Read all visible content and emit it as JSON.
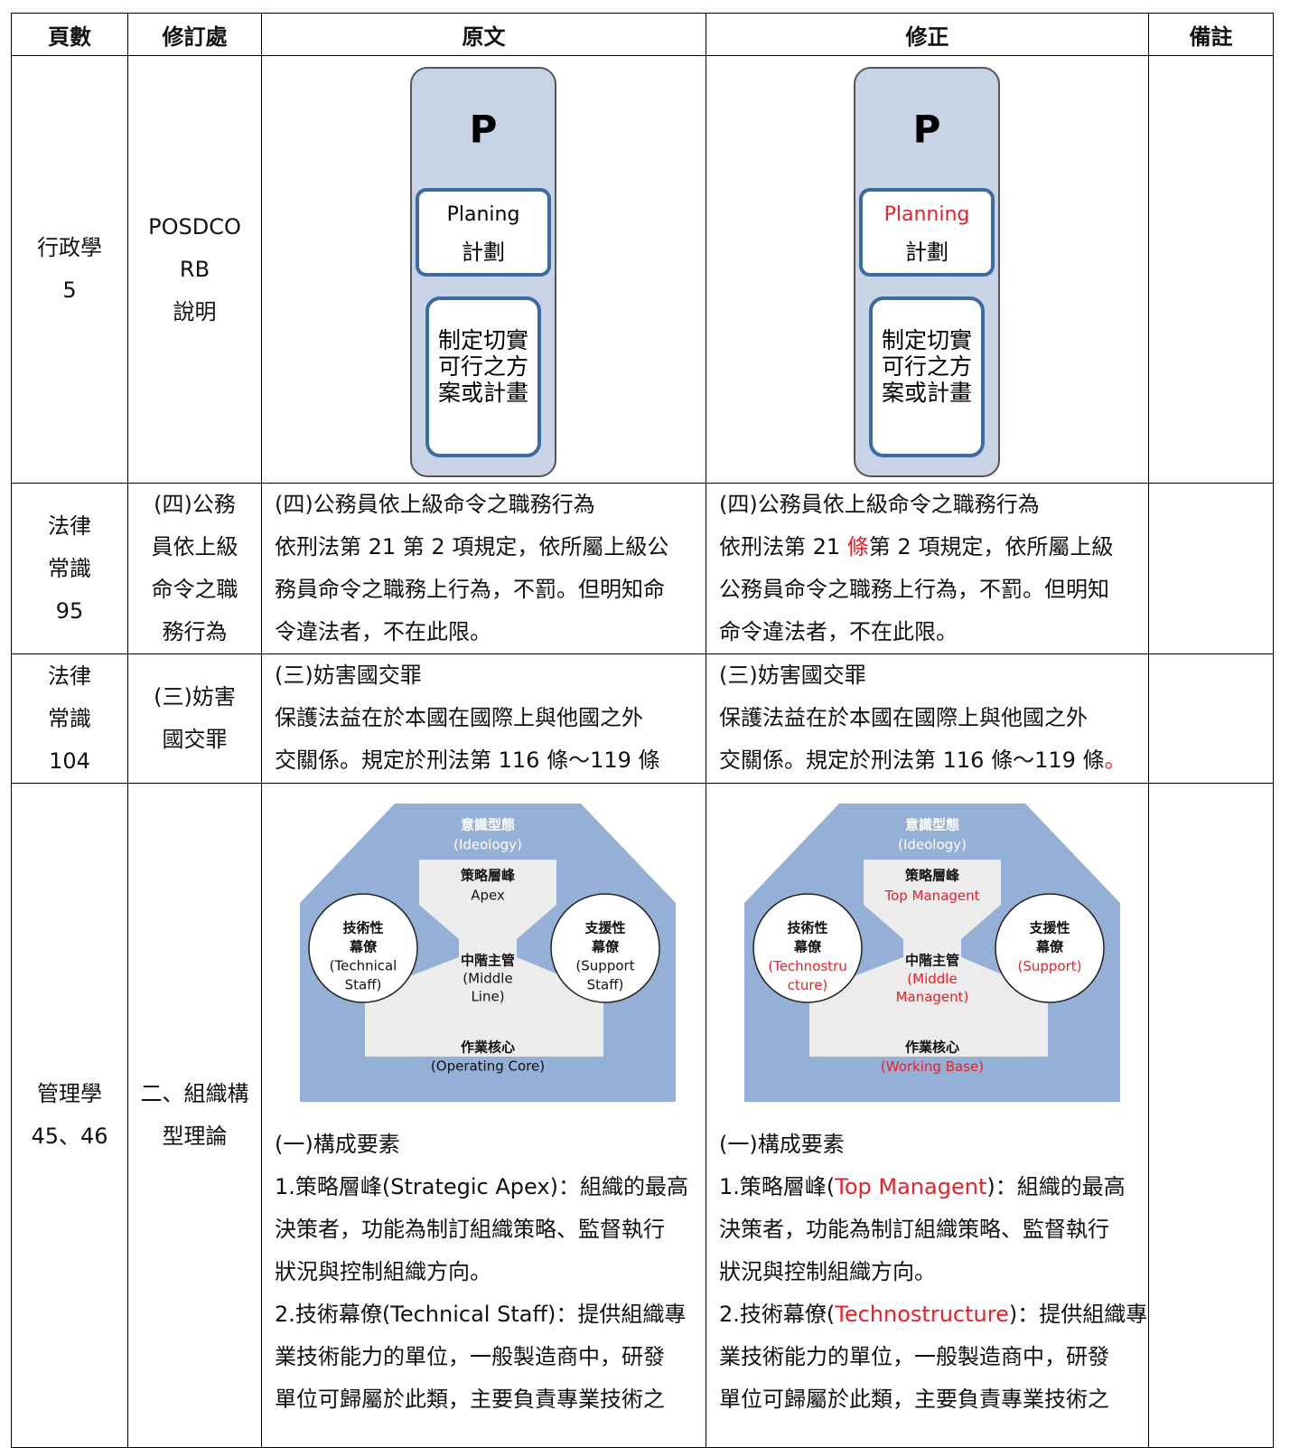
{
  "table": {
    "header": [
      "頁數",
      "修訂處",
      "原文",
      "修正",
      "備註"
    ],
    "rows": [
      {
        "page": [
          "行政學",
          "5"
        ],
        "location": [
          "POSDCO",
          "RB",
          "說明"
        ],
        "original": {
          "diagram": {
            "letter": "P",
            "title": [
              "Planing"
            ],
            "subtitle": "計劃",
            "body": [
              "制定切實",
              "可行之方",
              "案或計畫"
            ]
          }
        },
        "revised": {
          "diagram": {
            "letter": "P",
            "title": [
              {
                "text": "Planning",
                "color": "#e8202a"
              }
            ],
            "subtitle": "計劃",
            "body": [
              "制定切實",
              "可行之方",
              "案或計畫"
            ]
          }
        }
      },
      {
        "page": [
          "法律",
          "常識",
          "95"
        ],
        "location": [
          "(四)公務",
          "員依上級",
          "命令之職",
          "務行為"
        ],
        "original": {
          "lines": [
            "(四)公務員依上級命令之職務行為",
            "依刑法第 21 第 2 項規定，依所屬上級公",
            "務員命令之職務上行為，不罰。但明知命",
            "令違法者，不在此限。"
          ]
        },
        "revised": {
          "lines": [
            "(四)公務員依上級命令之職務行為",
            [
              "依刑法第 21 ",
              {
                "text": "條",
                "color": "#e8202a"
              },
              "第 2 項規定，依所屬上級"
            ],
            "公務員命令之職務上行為，不罰。但明知",
            "命令違法者，不在此限。"
          ]
        }
      },
      {
        "page": [
          "法律",
          "常識",
          "104"
        ],
        "location": [
          "(三)妨害",
          "國交罪"
        ],
        "original": {
          "lines": [
            "(三)妨害國交罪",
            "保護法益在於本國在國際上與他國之外",
            "交關係。規定於刑法第 116 條～119 條"
          ]
        },
        "revised": {
          "lines": [
            "(三)妨害國交罪",
            "保護法益在於本國在國際上與他國之外",
            [
              "交關係。規定於刑法第 116 條～119 條",
              {
                "text": "。",
                "color": "#e8202a"
              }
            ]
          ]
        }
      },
      {
        "page": [
          "管理學",
          "45、46"
        ],
        "location": [
          "二、組織構",
          "型理論"
        ],
        "original": {
          "org": {
            "ideology": [
              "意識型態",
              "(Ideology)"
            ],
            "apex": [
              "策略層峰",
              "Apex"
            ],
            "technical": [
              "技術性",
              "幕僚",
              "(Technical",
              "Staff)"
            ],
            "middle": [
              "中階主管",
              "(Middle",
              "Line)"
            ],
            "support": [
              "支援性",
              "幕僚",
              "(Support",
              "Staff)"
            ],
            "core": [
              "作業核心",
              "(Operating Core)"
            ]
          },
          "lines": [
            "(一)構成要素",
            "1.策略層峰(Strategic Apex)：組織的最高",
            "決策者，功能為制訂組織策略、監督執行",
            "狀況與控制組織方向。",
            "2.技術幕僚(Technical Staff)：提供組織專",
            "業技術能力的單位，一般製造商中，研發",
            "單位可歸屬於此類，主要負責專業技術之"
          ]
        },
        "revised": {
          "org": {
            "ideology": [
              "意識型態",
              "(Ideology)"
            ],
            "apex": [
              "策略層峰",
              [
                {
                  "text": "Top Managent",
                  "color": "#e8202a"
                }
              ]
            ],
            "technical": [
              "技術性",
              "幕僚",
              [
                {
                  "text": "(Technostru",
                  "color": "#e8202a"
                }
              ],
              [
                {
                  "text": "cture)",
                  "color": "#e8202a"
                }
              ]
            ],
            "middle": [
              "中階主管",
              [
                {
                  "text": "(Middle",
                  "color": "#e8202a"
                }
              ],
              [
                {
                  "text": "Managent)",
                  "color": "#e8202a"
                }
              ]
            ],
            "support": [
              "支援性",
              "幕僚",
              [
                {
                  "text": "(Support)",
                  "color": "#e8202a"
                }
              ]
            ],
            "core": [
              "作業核心",
              [
                {
                  "text": "(Working Base)",
                  "color": "#e8202a"
                }
              ]
            ]
          },
          "lines": [
            "(一)構成要素",
            [
              "1.策略層峰(",
              {
                "text": "Top Managent",
                "color": "#e8202a"
              },
              ")：組織的最高"
            ],
            "決策者，功能為制訂組織策略、監督執行",
            "狀況與控制組織方向。",
            [
              "2.技術幕僚(",
              {
                "text": "Technostructure",
                "color": "#e8202a"
              },
              ")：提供組織專"
            ],
            "業技術能力的單位，一般製造商中，研發",
            "單位可歸屬於此類，主要負責專業技術之"
          ]
        }
      }
    ]
  }
}
